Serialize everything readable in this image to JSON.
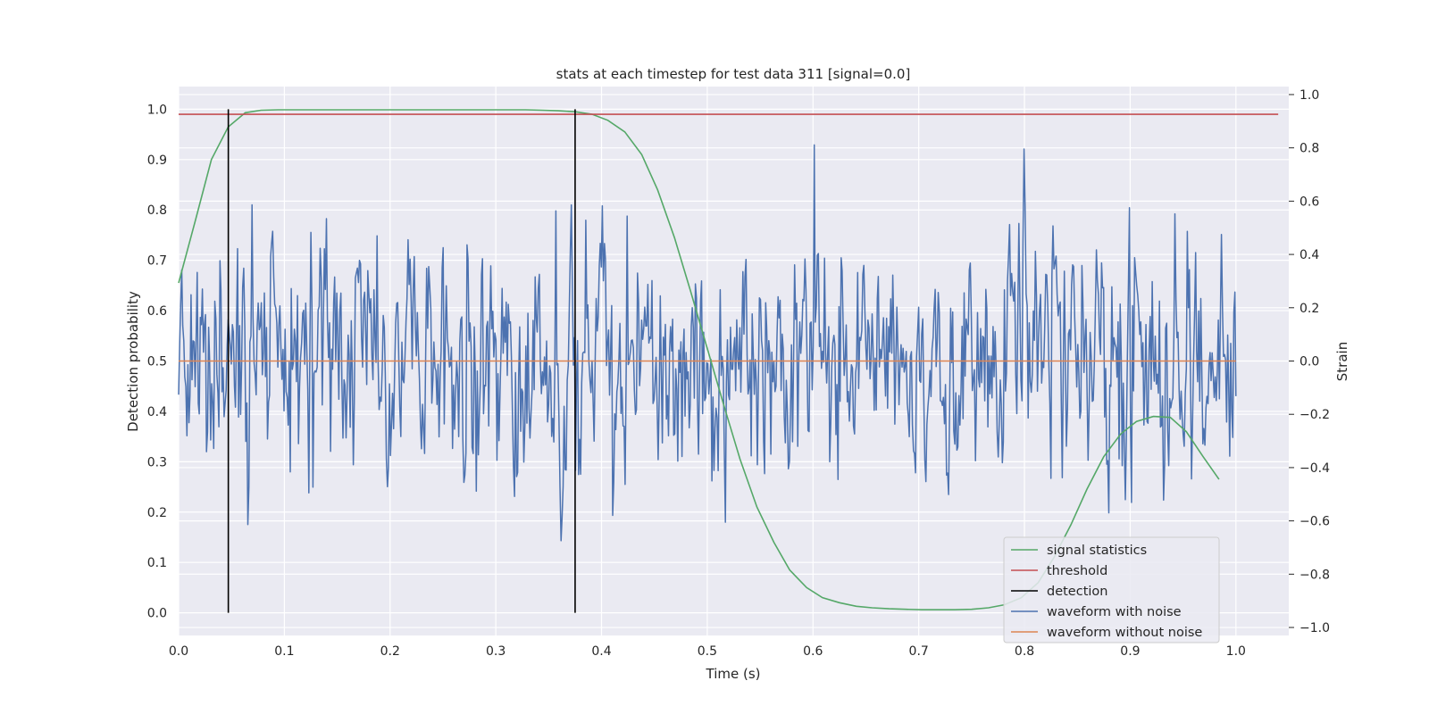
{
  "chart_data": {
    "type": "line",
    "title": "stats at each timestep for test data 311 [signal=0.0]",
    "xlabel": "Time (s)",
    "ylabel_left": "Detection probability",
    "ylabel_right": "Strain",
    "xlim": [
      0.0,
      1.05
    ],
    "ylim_left": [
      -0.045,
      1.045
    ],
    "ylim_right": [
      -1.03,
      1.03
    ],
    "x_ticks": [
      "0.0",
      "0.1",
      "0.2",
      "0.3",
      "0.4",
      "0.5",
      "0.6",
      "0.7",
      "0.8",
      "0.9",
      "1.0"
    ],
    "y_left_ticks": [
      "0.0",
      "0.1",
      "0.2",
      "0.3",
      "0.4",
      "0.5",
      "0.6",
      "0.7",
      "0.8",
      "0.9",
      "1.0"
    ],
    "y_right_ticks": [
      "−1.0",
      "−0.8",
      "−0.6",
      "−0.4",
      "−0.2",
      "0.0",
      "0.2",
      "0.4",
      "0.6",
      "0.8",
      "1.0"
    ],
    "grid": true,
    "legend_position": "lower right",
    "colors": {
      "background": "#eaeaf2",
      "grid": "#ffffff",
      "signal_statistics": "#55a868",
      "threshold": "#c44e52",
      "detection": "#000000",
      "waveform_with_noise": "#4c72b0",
      "waveform_without_noise": "#dd8452"
    },
    "series": [
      {
        "name": "signal statistics",
        "axis": "left",
        "x": [
          0.0,
          0.016,
          0.031,
          0.047,
          0.063,
          0.078,
          0.094,
          0.109,
          0.125,
          0.14,
          0.156,
          0.172,
          0.188,
          0.203,
          0.219,
          0.234,
          0.25,
          0.266,
          0.281,
          0.297,
          0.313,
          0.328,
          0.344,
          0.359,
          0.375,
          0.391,
          0.406,
          0.422,
          0.438,
          0.453,
          0.469,
          0.484,
          0.5,
          0.516,
          0.531,
          0.547,
          0.563,
          0.578,
          0.594,
          0.609,
          0.625,
          0.641,
          0.656,
          0.672,
          0.688,
          0.703,
          0.719,
          0.734,
          0.75,
          0.766,
          0.781,
          0.797,
          0.813,
          0.828,
          0.844,
          0.859,
          0.875,
          0.891,
          0.906,
          0.922,
          0.938,
          0.953,
          0.969,
          0.984
        ],
        "values": [
          0.655,
          0.78,
          0.9,
          0.965,
          0.993,
          0.998,
          0.999,
          0.999,
          0.999,
          0.999,
          0.999,
          0.999,
          0.999,
          0.999,
          0.999,
          0.999,
          0.999,
          0.999,
          0.999,
          0.999,
          0.999,
          0.999,
          0.998,
          0.997,
          0.995,
          0.99,
          0.978,
          0.955,
          0.91,
          0.84,
          0.745,
          0.64,
          0.525,
          0.41,
          0.305,
          0.21,
          0.14,
          0.085,
          0.05,
          0.03,
          0.02,
          0.013,
          0.01,
          0.008,
          0.007,
          0.006,
          0.006,
          0.006,
          0.007,
          0.01,
          0.016,
          0.03,
          0.06,
          0.11,
          0.175,
          0.245,
          0.31,
          0.355,
          0.38,
          0.39,
          0.388,
          0.36,
          0.31,
          0.265
        ]
      },
      {
        "name": "threshold",
        "axis": "left",
        "x": [
          0.0,
          1.04
        ],
        "values": [
          0.99,
          0.99
        ]
      },
      {
        "name": "detection",
        "axis": "left",
        "x": [
          0.047,
          0.375
        ],
        "ymin": 0.0,
        "ymax": 1.0
      },
      {
        "name": "waveform with noise",
        "axis": "right",
        "x_start": 0.0,
        "x_end": 1.0,
        "n_points": 1024,
        "seed": 311,
        "note_values": "noise-like strain approx. in [-0.95, 1.0]"
      },
      {
        "name": "waveform without noise",
        "axis": "right",
        "x": [
          0.0,
          1.0
        ],
        "values": [
          0.0,
          0.0
        ]
      }
    ],
    "legend": [
      "signal statistics",
      "threshold",
      "detection",
      "waveform with noise",
      "waveform without noise"
    ]
  }
}
